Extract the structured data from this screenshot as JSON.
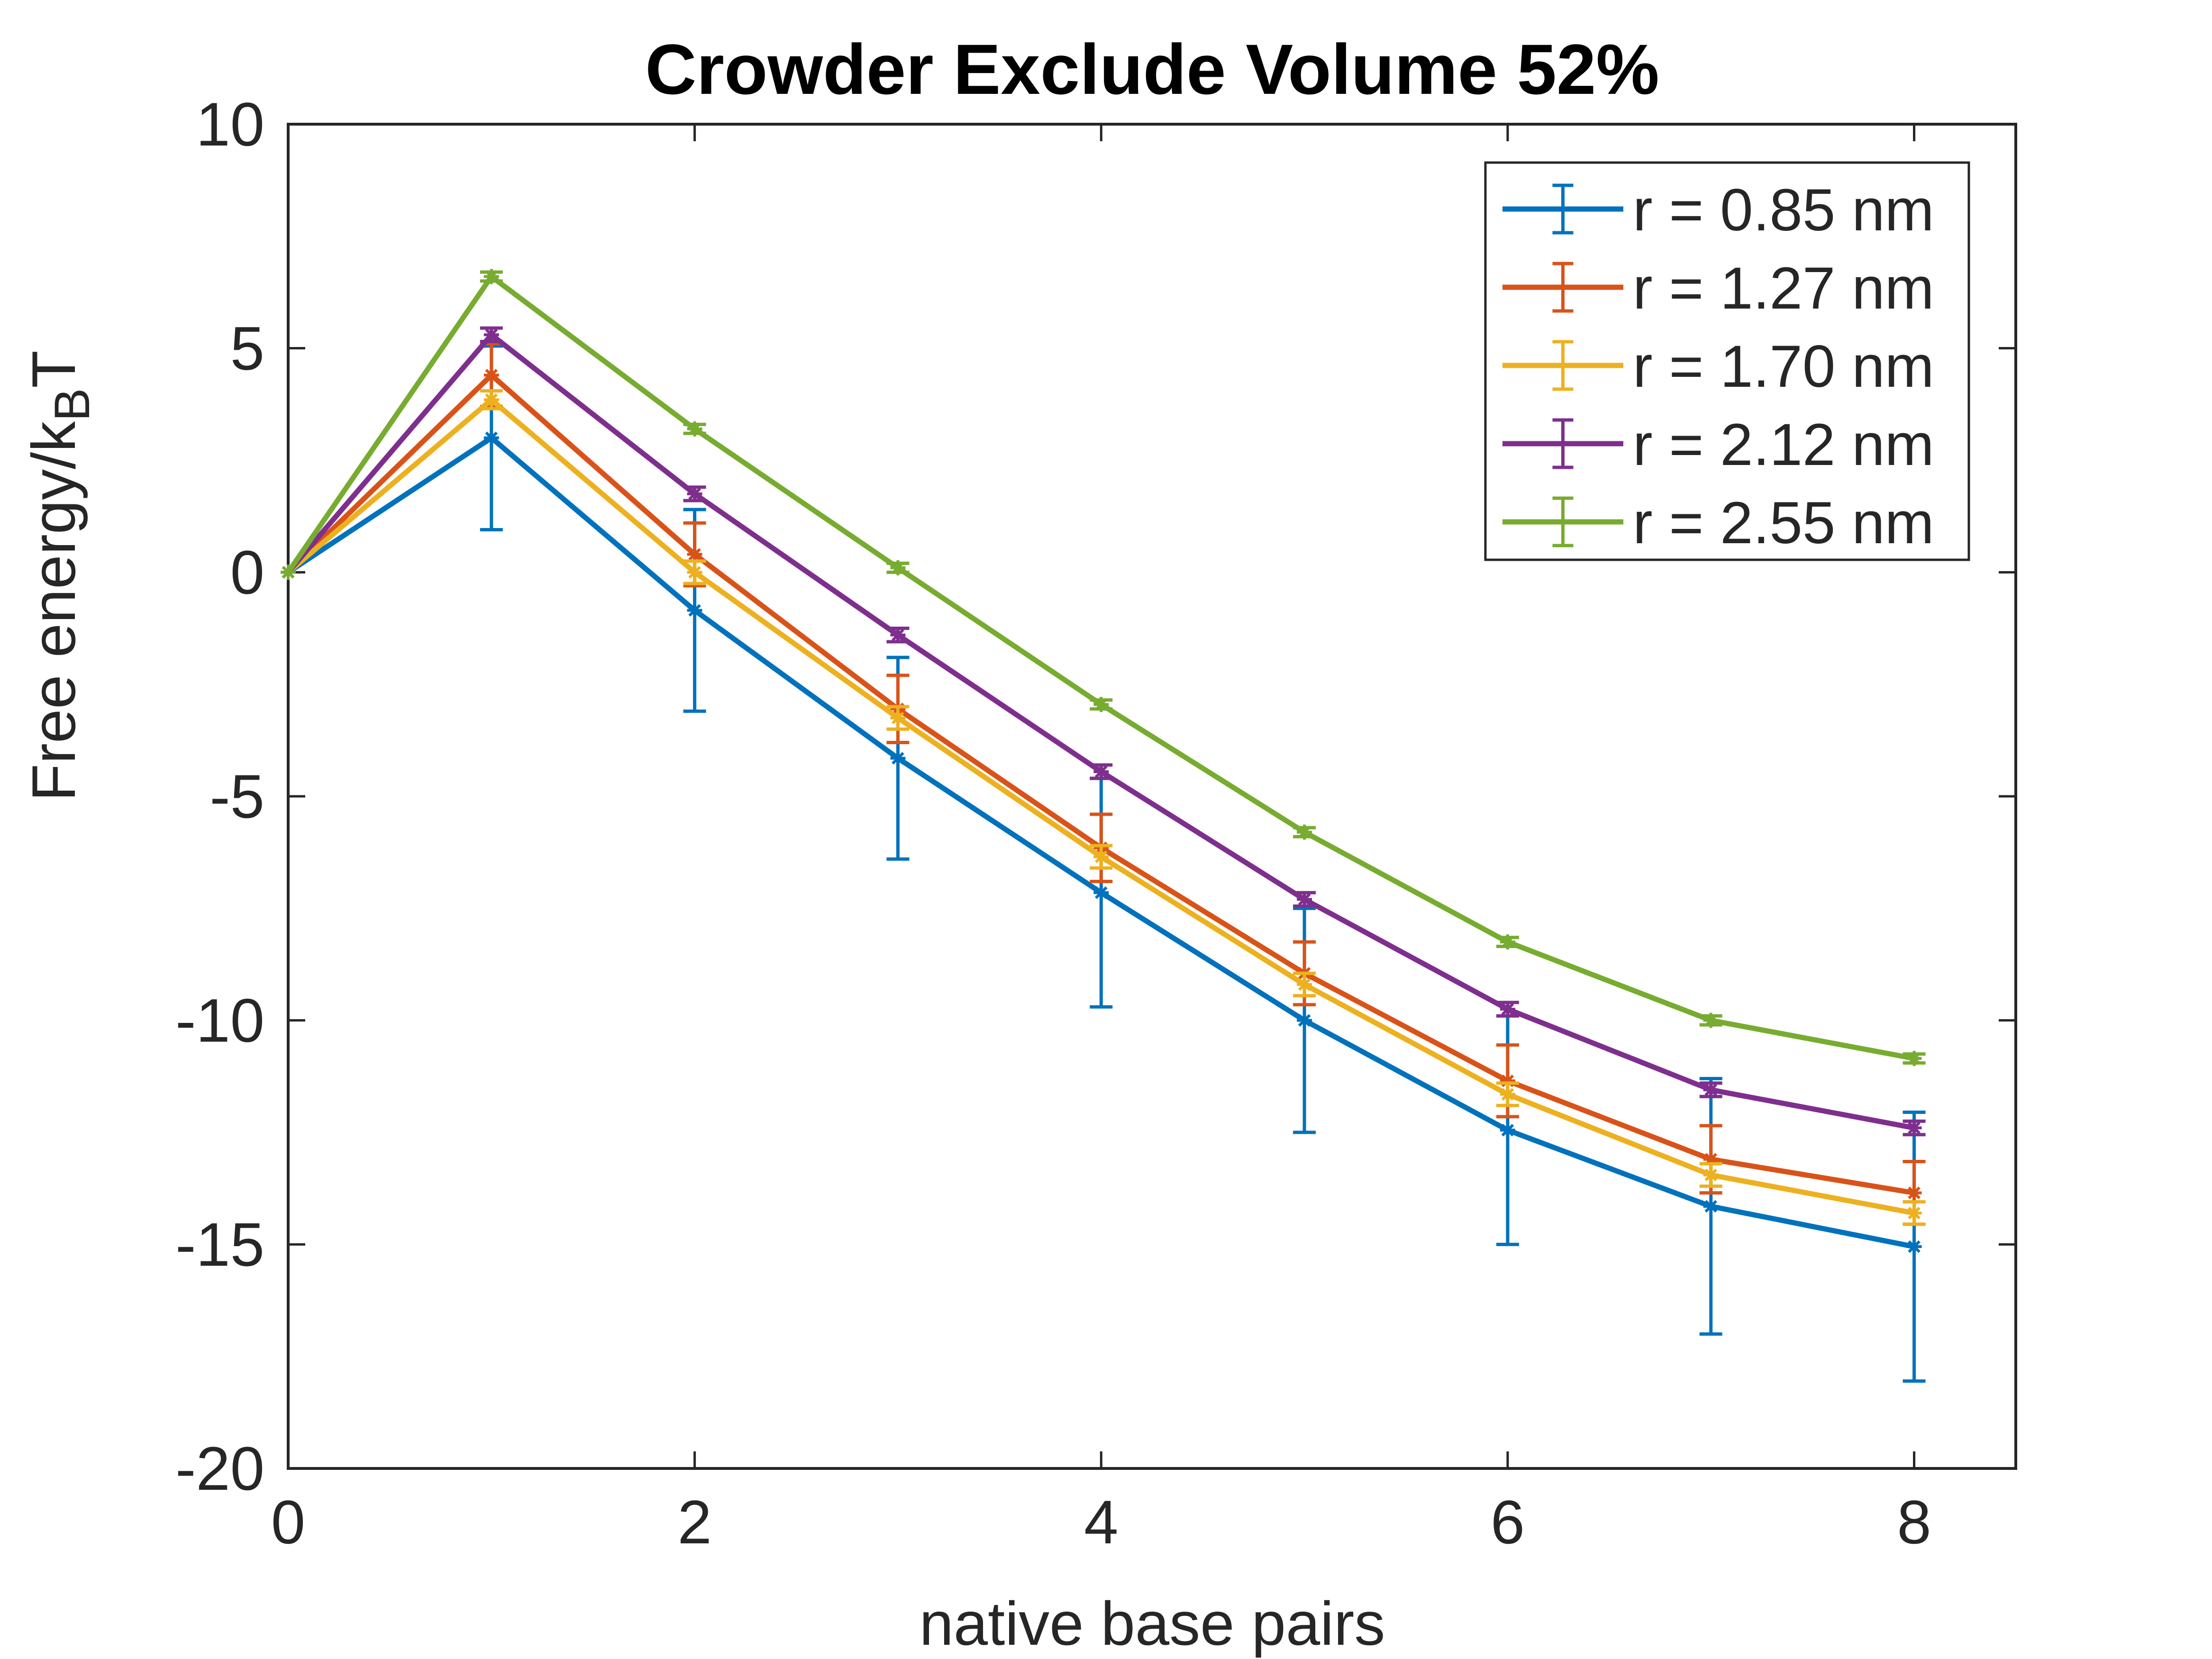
{
  "chart_data": {
    "type": "line",
    "title": "Crowder Exclude Volume 52%",
    "xlabel": "native base pairs",
    "ylabel_main": "Free energy/k",
    "ylabel_sub": "B",
    "ylabel_tail": "T",
    "xlim": [
      0,
      8.5
    ],
    "ylim": [
      -20,
      10
    ],
    "xticks": [
      0,
      2,
      4,
      6,
      8
    ],
    "xtick_labels": [
      "0",
      "2",
      "4",
      "6",
      "8"
    ],
    "yticks": [
      10,
      5,
      0,
      -5,
      -10,
      -15,
      -20
    ],
    "ytick_labels": [
      "10",
      "5",
      "0",
      "-5",
      "-10",
      "-15",
      "-20"
    ],
    "grid": false,
    "legend_position": "top-right",
    "x": [
      0,
      1,
      2,
      3,
      4,
      5,
      6,
      7,
      8
    ],
    "series": [
      {
        "name": "r = 0.85 nm",
        "color": "#0072BD",
        "values": [
          0,
          3.0,
          -0.85,
          -4.15,
          -7.15,
          -10.0,
          -12.45,
          -14.15,
          -15.05
        ],
        "errors": [
          0,
          2.05,
          2.25,
          2.25,
          2.55,
          2.5,
          2.55,
          2.85,
          3.0
        ]
      },
      {
        "name": "r = 1.27 nm",
        "color": "#D95319",
        "values": [
          0,
          4.4,
          0.4,
          -3.05,
          -6.15,
          -8.95,
          -11.35,
          -13.1,
          -13.85
        ],
        "errors": [
          0,
          0.7,
          0.7,
          0.75,
          0.75,
          0.7,
          0.8,
          0.75,
          0.7
        ]
      },
      {
        "name": "r = 1.70 nm",
        "color": "#EDB120",
        "values": [
          0,
          3.85,
          0.0,
          -3.25,
          -6.35,
          -9.2,
          -11.65,
          -13.45,
          -14.3
        ],
        "errors": [
          0,
          0.2,
          0.25,
          0.25,
          0.25,
          0.25,
          0.25,
          0.25,
          0.25
        ]
      },
      {
        "name": "r = 2.12 nm",
        "color": "#7E2F8E",
        "values": [
          0,
          5.3,
          1.75,
          -1.4,
          -4.45,
          -7.3,
          -9.75,
          -11.55,
          -12.4
        ],
        "errors": [
          0,
          0.15,
          0.15,
          0.15,
          0.15,
          0.15,
          0.15,
          0.15,
          0.15
        ]
      },
      {
        "name": "r = 2.55 nm",
        "color": "#77AC30",
        "values": [
          0,
          6.6,
          3.2,
          0.1,
          -2.95,
          -5.8,
          -8.25,
          -10.0,
          -10.85
        ],
        "errors": [
          0,
          0.1,
          0.1,
          0.1,
          0.1,
          0.1,
          0.1,
          0.1,
          0.1
        ]
      }
    ]
  }
}
